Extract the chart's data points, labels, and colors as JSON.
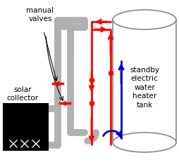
{
  "bg_color": "#ffffff",
  "gray_color": "#b0b0b0",
  "gray_lw": 7,
  "red_color": "#ff0000",
  "red_lw": 2.0,
  "blue_color": "#0000cc",
  "blue_lw": 2.0,
  "black_color": "#000000",
  "tank_edge_color": "#888888",
  "tank_lw": 1.2,
  "solar_box_color": "#000000",
  "label_manual_valves": "manual\nvalves",
  "label_solar_collector": "solar\ncollector",
  "label_standby": "standby\nelectric\nwater\nheater\ntank",
  "font_size": 7.5,
  "figw": 2.55,
  "figh": 2.32,
  "dpi": 100
}
